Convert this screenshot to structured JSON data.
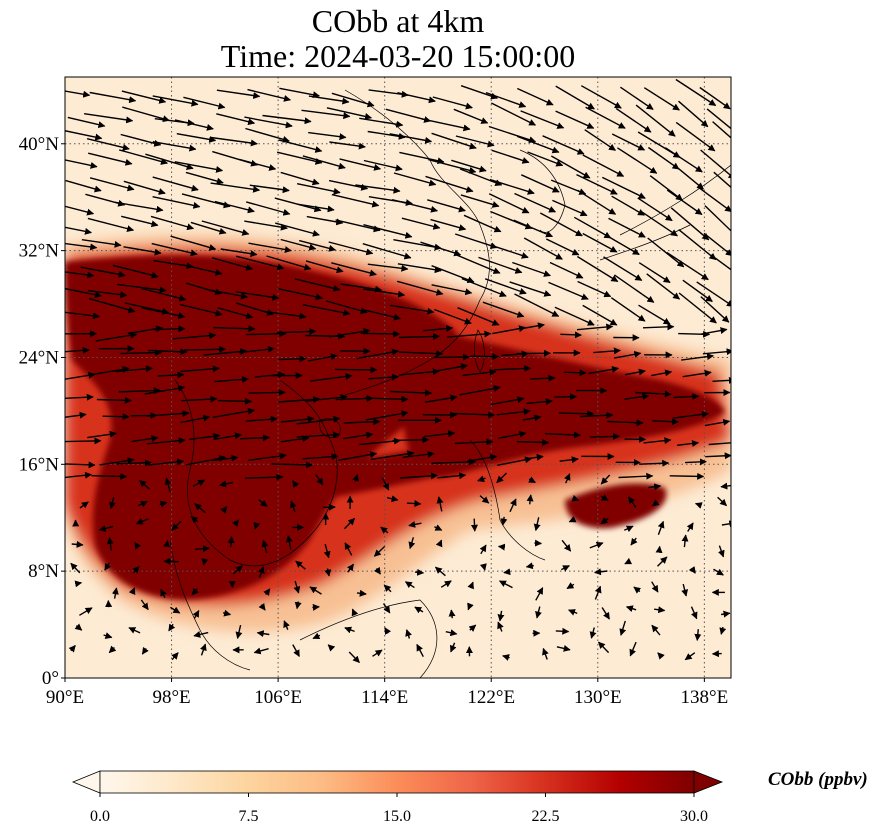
{
  "title": {
    "line1": "CObb at 4km",
    "line2": "Time: 2024-03-20 15:00:00"
  },
  "map": {
    "lon_range": [
      90,
      140
    ],
    "lat_range": [
      0,
      45
    ],
    "lon_ticks": [
      {
        "value": 90,
        "label": "90°E"
      },
      {
        "value": 98,
        "label": "98°E"
      },
      {
        "value": 106,
        "label": "106°E"
      },
      {
        "value": 114,
        "label": "114°E"
      },
      {
        "value": 122,
        "label": "122°E"
      },
      {
        "value": 130,
        "label": "130°E"
      },
      {
        "value": 138,
        "label": "138°E"
      }
    ],
    "lat_ticks": [
      {
        "value": 0,
        "label": "0°"
      },
      {
        "value": 8,
        "label": "8°N"
      },
      {
        "value": 16,
        "label": "16°N"
      },
      {
        "value": 24,
        "label": "24°N"
      },
      {
        "value": 32,
        "label": "32°N"
      },
      {
        "value": 40,
        "label": "40°N"
      }
    ],
    "gridlines": "dotted",
    "background_color": "#fdebd4",
    "plume_color": "#800000",
    "arrow_color": "#000000",
    "wind_regime": "westerly, turning northwesterly over the northeast"
  },
  "colorbar": {
    "label": "CObb (ppbv)",
    "min": 0,
    "max": 30,
    "ticks": [
      "0.0",
      "7.5",
      "15.0",
      "22.5",
      "30.0"
    ],
    "colormap": "OrRd",
    "colors": [
      "#fff7ec",
      "#fee8c8",
      "#fdd49e",
      "#fdbb84",
      "#fc8d59",
      "#ef6548",
      "#d7301f",
      "#b30000",
      "#7f0000"
    ],
    "extend": "both"
  }
}
